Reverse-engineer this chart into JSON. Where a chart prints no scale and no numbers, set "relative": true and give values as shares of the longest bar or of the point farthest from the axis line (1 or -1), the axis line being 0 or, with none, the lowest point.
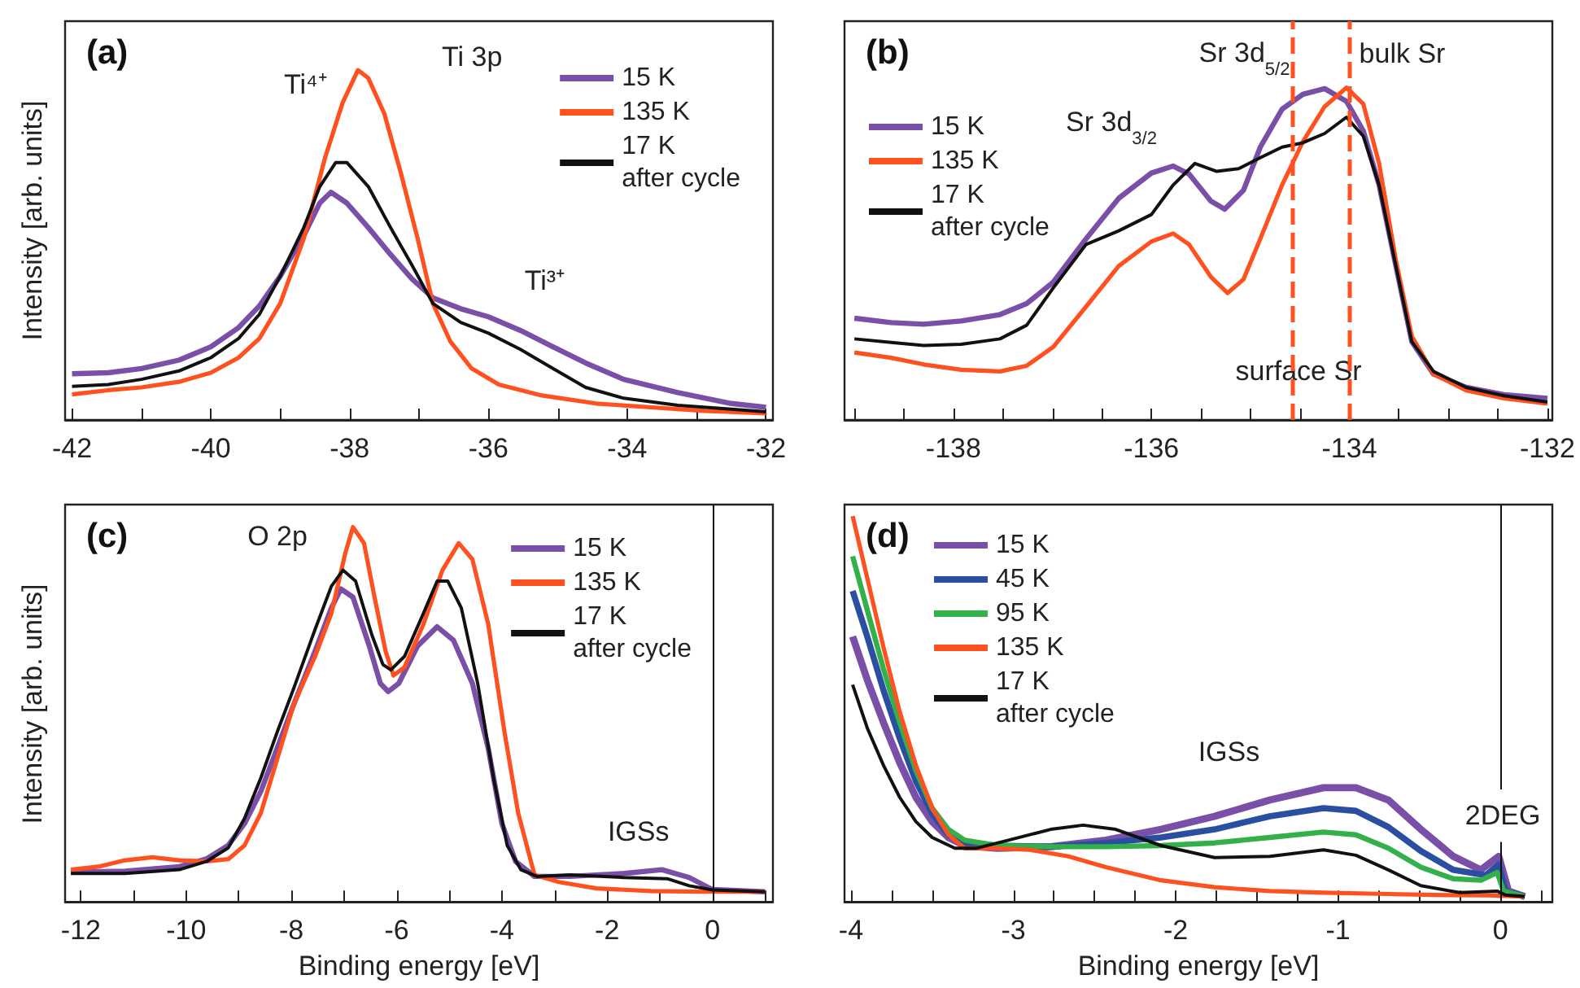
{
  "chart_data": [
    {
      "type": "line",
      "title": "(a)",
      "ylabel": "Intensity [arb. units]",
      "relative": true,
      "marker": "none",
      "legend": "top right",
      "xlim": [
        -42.1,
        -31.9
      ],
      "xticks": [
        -42,
        {
          "value": -41,
          "label": null
        },
        -40,
        {
          "value": -39,
          "label": null
        },
        -38,
        {
          "value": -37,
          "label": null
        },
        -36,
        {
          "value": -35,
          "label": null
        },
        -34,
        {
          "value": -33,
          "label": null
        },
        -32
      ],
      "annotations": [
        "Ti 3p",
        "Ti⁴⁺",
        "Ti³⁺"
      ],
      "series": [
        {
          "name": "15 K",
          "color": "#7a4fa8",
          "x": [
            -42,
            -41.48,
            -41,
            -40.46,
            -40,
            -39.6,
            -39.3,
            -39,
            -38.66,
            -38.43,
            -38.27,
            -38.04,
            -37.73,
            -37.41,
            -37.1,
            -36.8,
            -36.4,
            -36,
            -35.54,
            -35.07,
            -34.6,
            -34.05,
            -33.27,
            -32.5,
            -32
          ],
          "values": [
            0.132,
            0.135,
            0.147,
            0.171,
            0.209,
            0.264,
            0.326,
            0.411,
            0.527,
            0.62,
            0.651,
            0.62,
            0.55,
            0.473,
            0.403,
            0.349,
            0.318,
            0.295,
            0.256,
            0.209,
            0.163,
            0.116,
            0.078,
            0.047,
            0.036
          ]
        },
        {
          "name": "135 K",
          "color": "#ff5020",
          "x": [
            -42,
            -41.48,
            -41,
            -40.46,
            -40,
            -39.6,
            -39.3,
            -39,
            -38.66,
            -38.35,
            -38.1,
            -37.88,
            -37.73,
            -37.5,
            -37.26,
            -37.02,
            -36.8,
            -36.55,
            -36.24,
            -35.85,
            -35.23,
            -34.45,
            -33.66,
            -32.88,
            -32
          ],
          "values": [
            0.073,
            0.085,
            0.093,
            0.109,
            0.135,
            0.178,
            0.233,
            0.333,
            0.519,
            0.752,
            0.907,
            1.0,
            0.977,
            0.876,
            0.705,
            0.519,
            0.333,
            0.225,
            0.147,
            0.101,
            0.07,
            0.047,
            0.036,
            0.026,
            0.019
          ]
        },
        {
          "name": "17 K\nafter cycle",
          "color": "#111111",
          "x": [
            -42,
            -41.48,
            -41,
            -40.46,
            -40,
            -39.6,
            -39.3,
            -39,
            -38.66,
            -38.43,
            -38.2,
            -38.04,
            -37.73,
            -37.41,
            -37.1,
            -36.8,
            -36.4,
            -36,
            -35.54,
            -35.07,
            -34.6,
            -34.05,
            -33.27,
            -32.5,
            -32
          ],
          "values": [
            0.096,
            0.101,
            0.116,
            0.14,
            0.178,
            0.233,
            0.302,
            0.411,
            0.55,
            0.667,
            0.736,
            0.736,
            0.667,
            0.55,
            0.442,
            0.333,
            0.279,
            0.248,
            0.202,
            0.147,
            0.093,
            0.062,
            0.042,
            0.031,
            0.023
          ]
        }
      ]
    },
    {
      "type": "line",
      "title": "(b)",
      "relative": true,
      "marker": "none",
      "legend": "top left",
      "xlim": [
        -139.1,
        -131.95
      ],
      "xticks": [
        {
          "value": -139,
          "label": null
        },
        {
          "value": -138.5,
          "label": null
        },
        -138,
        {
          "value": -137.5,
          "label": null
        },
        {
          "value": -137,
          "label": null
        },
        {
          "value": -136.5,
          "label": null
        },
        -136,
        {
          "value": -135.5,
          "label": null
        },
        {
          "value": -135,
          "label": null
        },
        {
          "value": -134.5,
          "label": null
        },
        -134,
        {
          "value": -133.5,
          "label": null
        },
        {
          "value": -133,
          "label": null
        },
        {
          "value": -132.5,
          "label": null
        },
        -132
      ],
      "annotations": [
        "Sr 3d$_{3/2}$",
        "Sr 3d$_{5/2}$"
      ],
      "ref_lines": [
        {
          "axis": "x",
          "value": -134.0,
          "label": "bulk Sr",
          "color": "#ff5020",
          "line_style": "dashed"
        },
        {
          "axis": "x",
          "value": -134.58,
          "label": "surface Sr",
          "color": "#ff5020",
          "line_style": "dashed"
        }
      ],
      "series": [
        {
          "name": "15 K",
          "color": "#7a4fa8",
          "x": [
            -139,
            -138.63,
            -138.3,
            -137.92,
            -137.53,
            -137.26,
            -136.99,
            -136.66,
            -136.33,
            -136,
            -135.78,
            -135.62,
            -135.4,
            -135.26,
            -135.07,
            -134.9,
            -134.68,
            -134.47,
            -134.25,
            -134.03,
            -133.86,
            -133.7,
            -133.53,
            -133.37,
            -133.15,
            -132.82,
            -132.44,
            -132
          ],
          "values": [
            0.306,
            0.293,
            0.288,
            0.298,
            0.317,
            0.35,
            0.415,
            0.545,
            0.667,
            0.743,
            0.764,
            0.74,
            0.659,
            0.634,
            0.691,
            0.821,
            0.935,
            0.98,
            0.997,
            0.959,
            0.87,
            0.707,
            0.463,
            0.236,
            0.138,
            0.098,
            0.076,
            0.065
          ]
        },
        {
          "name": "135 K",
          "color": "#ff5020",
          "x": [
            -139,
            -138.63,
            -138.3,
            -137.92,
            -137.53,
            -137.26,
            -136.99,
            -136.66,
            -136.33,
            -136,
            -135.78,
            -135.62,
            -135.4,
            -135.23,
            -135.07,
            -134.9,
            -134.68,
            -134.47,
            -134.25,
            -134.03,
            -133.86,
            -133.7,
            -133.53,
            -133.37,
            -133.15,
            -132.82,
            -132.44,
            -132
          ],
          "values": [
            0.203,
            0.187,
            0.167,
            0.151,
            0.146,
            0.163,
            0.22,
            0.341,
            0.463,
            0.537,
            0.561,
            0.528,
            0.431,
            0.382,
            0.423,
            0.545,
            0.707,
            0.837,
            0.943,
            1.0,
            0.951,
            0.772,
            0.48,
            0.252,
            0.138,
            0.089,
            0.065,
            0.049
          ]
        },
        {
          "name": "17 K\nafter cycle",
          "color": "#111111",
          "x": [
            -139,
            -138.63,
            -138.3,
            -137.92,
            -137.53,
            -137.26,
            -136.99,
            -136.66,
            -136.33,
            -136,
            -135.78,
            -135.56,
            -135.34,
            -135.12,
            -134.9,
            -134.68,
            -134.47,
            -134.25,
            -134.03,
            -133.86,
            -133.7,
            -133.53,
            -133.37,
            -133.15,
            -132.82,
            -132.44,
            -132
          ],
          "values": [
            0.244,
            0.233,
            0.224,
            0.228,
            0.244,
            0.285,
            0.398,
            0.528,
            0.569,
            0.618,
            0.707,
            0.772,
            0.748,
            0.756,
            0.789,
            0.821,
            0.834,
            0.862,
            0.911,
            0.854,
            0.707,
            0.463,
            0.236,
            0.146,
            0.098,
            0.073,
            0.054
          ]
        }
      ]
    },
    {
      "type": "line",
      "title": "(c)",
      "xlabel": "Binding energy [eV]",
      "ylabel": "Intensity [arb. units]",
      "relative": true,
      "marker": "none",
      "legend": "top right",
      "xlim": [
        -12.3,
        1.15
      ],
      "xticks": [
        -12,
        {
          "value": -11,
          "label": null
        },
        -10,
        {
          "value": -9,
          "label": null
        },
        -8,
        {
          "value": -7,
          "label": null
        },
        -6,
        {
          "value": -5,
          "label": null
        },
        -4,
        {
          "value": -3,
          "label": null
        },
        -2,
        {
          "value": -1,
          "label": null
        },
        0,
        {
          "value": 1,
          "label": null
        }
      ],
      "annotations": [
        "O 2p",
        "IGSs"
      ],
      "ref_lines": [
        {
          "axis": "x",
          "value": 0,
          "color": "#111111",
          "line_style": "solid"
        }
      ],
      "series": [
        {
          "name": "15 K",
          "color": "#7a4fa8",
          "x": [
            -12.19,
            -11.16,
            -10.13,
            -9.61,
            -9.2,
            -8.89,
            -8.58,
            -8.27,
            -7.96,
            -7.55,
            -7.24,
            -7.06,
            -6.83,
            -6.52,
            -6.31,
            -6.16,
            -5.96,
            -5.6,
            -5.23,
            -4.92,
            -4.56,
            -4.26,
            -4.0,
            -3.74,
            -3.38,
            -2.71,
            -1.68,
            -0.96,
            -0.44,
            0,
            1
          ],
          "values": [
            0.079,
            0.082,
            0.094,
            0.115,
            0.151,
            0.209,
            0.295,
            0.41,
            0.525,
            0.669,
            0.784,
            0.835,
            0.813,
            0.683,
            0.583,
            0.561,
            0.583,
            0.683,
            0.734,
            0.698,
            0.583,
            0.41,
            0.209,
            0.108,
            0.068,
            0.068,
            0.076,
            0.086,
            0.065,
            0.033,
            0.027
          ]
        },
        {
          "name": "135 K",
          "color": "#ff5020",
          "x": [
            -12.19,
            -11.67,
            -11.16,
            -10.64,
            -10.13,
            -9.61,
            -9.2,
            -8.89,
            -8.58,
            -8.27,
            -7.96,
            -7.55,
            -7.24,
            -6.98,
            -6.83,
            -6.62,
            -6.42,
            -6.21,
            -6.06,
            -5.85,
            -5.49,
            -5.13,
            -4.82,
            -4.56,
            -4.26,
            -3.95,
            -3.69,
            -3.38,
            -2.92,
            -2.2,
            -1.17,
            -0.14,
            1
          ],
          "values": [
            0.086,
            0.094,
            0.111,
            0.119,
            0.111,
            0.108,
            0.114,
            0.151,
            0.237,
            0.381,
            0.525,
            0.655,
            0.77,
            0.928,
            1.0,
            0.957,
            0.813,
            0.669,
            0.604,
            0.626,
            0.741,
            0.885,
            0.957,
            0.914,
            0.741,
            0.453,
            0.237,
            0.072,
            0.053,
            0.036,
            0.029,
            0.027,
            0.027
          ]
        },
        {
          "name": "17 K\nafter cycle",
          "color": "#111111",
          "x": [
            -12.19,
            -11.16,
            -10.13,
            -9.61,
            -9.2,
            -8.89,
            -8.58,
            -8.27,
            -7.96,
            -7.55,
            -7.24,
            -7.02,
            -6.78,
            -6.47,
            -6.26,
            -6.11,
            -5.85,
            -5.49,
            -5.23,
            -5.03,
            -4.77,
            -4.46,
            -4.15,
            -3.9,
            -3.64,
            -3.33,
            -2.71,
            -1.68,
            -0.86,
            -0.44,
            0,
            1
          ],
          "values": [
            0.076,
            0.076,
            0.086,
            0.108,
            0.144,
            0.223,
            0.331,
            0.453,
            0.568,
            0.727,
            0.842,
            0.885,
            0.856,
            0.712,
            0.633,
            0.619,
            0.655,
            0.77,
            0.856,
            0.856,
            0.784,
            0.583,
            0.324,
            0.151,
            0.086,
            0.068,
            0.072,
            0.065,
            0.062,
            0.043,
            0.032,
            0.027
          ]
        }
      ]
    },
    {
      "type": "line",
      "title": "(d)",
      "xlabel": "Binding energy [eV]",
      "relative": true,
      "marker": "none",
      "legend": "top left",
      "xlim": [
        -4.04,
        0.32
      ],
      "xticks": [
        -4,
        {
          "value": -3.75,
          "label": null
        },
        {
          "value": -3.5,
          "label": null
        },
        {
          "value": -3.25,
          "label": null
        },
        -3,
        {
          "value": -2.75,
          "label": null
        },
        {
          "value": -2.5,
          "label": null
        },
        {
          "value": -2.25,
          "label": null
        },
        -2,
        {
          "value": -1.75,
          "label": null
        },
        {
          "value": -1.5,
          "label": null
        },
        {
          "value": -1.25,
          "label": null
        },
        -1,
        {
          "value": -0.75,
          "label": null
        },
        {
          "value": -0.5,
          "label": null
        },
        {
          "value": -0.25,
          "label": null
        },
        0,
        {
          "value": 0.25,
          "label": null
        }
      ],
      "annotations": [
        "IGSs",
        "2DEG"
      ],
      "ref_lines": [
        {
          "axis": "x",
          "value": 0,
          "color": "#111111",
          "line_style": "solid"
        }
      ],
      "series": [
        {
          "name": "15 K",
          "color": "#7a4fa8",
          "x": [
            -3.99,
            -3.9,
            -3.8,
            -3.7,
            -3.6,
            -3.5,
            -3.4,
            -3.3,
            -3.1,
            -2.77,
            -2.43,
            -2.09,
            -1.76,
            -1.42,
            -1.09,
            -0.89,
            -0.69,
            -0.49,
            -0.29,
            -0.12,
            -0.01,
            0.05,
            0.15
          ],
          "values": [
            0.688,
            0.576,
            0.465,
            0.361,
            0.271,
            0.208,
            0.167,
            0.146,
            0.139,
            0.143,
            0.16,
            0.188,
            0.222,
            0.264,
            0.296,
            0.296,
            0.264,
            0.188,
            0.118,
            0.083,
            0.118,
            0.028,
            0.014
          ]
        },
        {
          "name": "45 K",
          "color": "#2a4ea0",
          "x": [
            -3.99,
            -3.9,
            -3.8,
            -3.7,
            -3.6,
            -3.5,
            -3.4,
            -3.3,
            -3.1,
            -2.77,
            -2.43,
            -2.09,
            -1.76,
            -1.42,
            -1.09,
            -0.89,
            -0.69,
            -0.49,
            -0.29,
            -0.09,
            -0.01,
            0.03,
            0.15
          ],
          "values": [
            0.806,
            0.688,
            0.549,
            0.424,
            0.313,
            0.229,
            0.174,
            0.153,
            0.146,
            0.143,
            0.153,
            0.167,
            0.188,
            0.222,
            0.243,
            0.236,
            0.194,
            0.132,
            0.083,
            0.069,
            0.097,
            0.028,
            0.014
          ]
        },
        {
          "name": "95 K",
          "color": "#33b04a",
          "x": [
            -3.99,
            -3.9,
            -3.8,
            -3.7,
            -3.6,
            -3.5,
            -3.4,
            -3.3,
            -3.1,
            -2.77,
            -2.43,
            -2.09,
            -1.76,
            -1.42,
            -1.09,
            -0.89,
            -0.69,
            -0.49,
            -0.29,
            -0.12,
            -0.02,
            0.02,
            0.15
          ],
          "values": [
            0.896,
            0.757,
            0.604,
            0.465,
            0.34,
            0.243,
            0.188,
            0.16,
            0.146,
            0.143,
            0.143,
            0.146,
            0.153,
            0.167,
            0.181,
            0.174,
            0.139,
            0.09,
            0.06,
            0.056,
            0.076,
            0.028,
            0.014
          ]
        },
        {
          "name": "135 K",
          "color": "#ff5020",
          "x": [
            -3.99,
            -3.9,
            -3.8,
            -3.7,
            -3.6,
            -3.5,
            -3.4,
            -3.3,
            -3.1,
            -2.9,
            -2.66,
            -2.43,
            -2.09,
            -1.76,
            -1.42,
            -1.09,
            -0.75,
            -0.42,
            -0.08,
            0.15
          ],
          "values": [
            1.0,
            0.84,
            0.66,
            0.493,
            0.354,
            0.243,
            0.174,
            0.139,
            0.139,
            0.135,
            0.118,
            0.09,
            0.056,
            0.038,
            0.028,
            0.024,
            0.021,
            0.018,
            0.017,
            0.014
          ]
        },
        {
          "name": "17 K\nafter cycle",
          "color": "#111111",
          "x": [
            -3.99,
            -3.9,
            -3.8,
            -3.7,
            -3.6,
            -3.5,
            -3.36,
            -3.23,
            -3.03,
            -2.77,
            -2.57,
            -2.37,
            -2.09,
            -1.76,
            -1.42,
            -1.09,
            -0.89,
            -0.69,
            -0.49,
            -0.25,
            -0.02,
            0.03,
            0.15
          ],
          "values": [
            0.563,
            0.451,
            0.354,
            0.271,
            0.208,
            0.167,
            0.139,
            0.139,
            0.16,
            0.188,
            0.199,
            0.188,
            0.146,
            0.115,
            0.118,
            0.135,
            0.121,
            0.083,
            0.042,
            0.024,
            0.028,
            0.018,
            0.014
          ]
        }
      ]
    }
  ]
}
